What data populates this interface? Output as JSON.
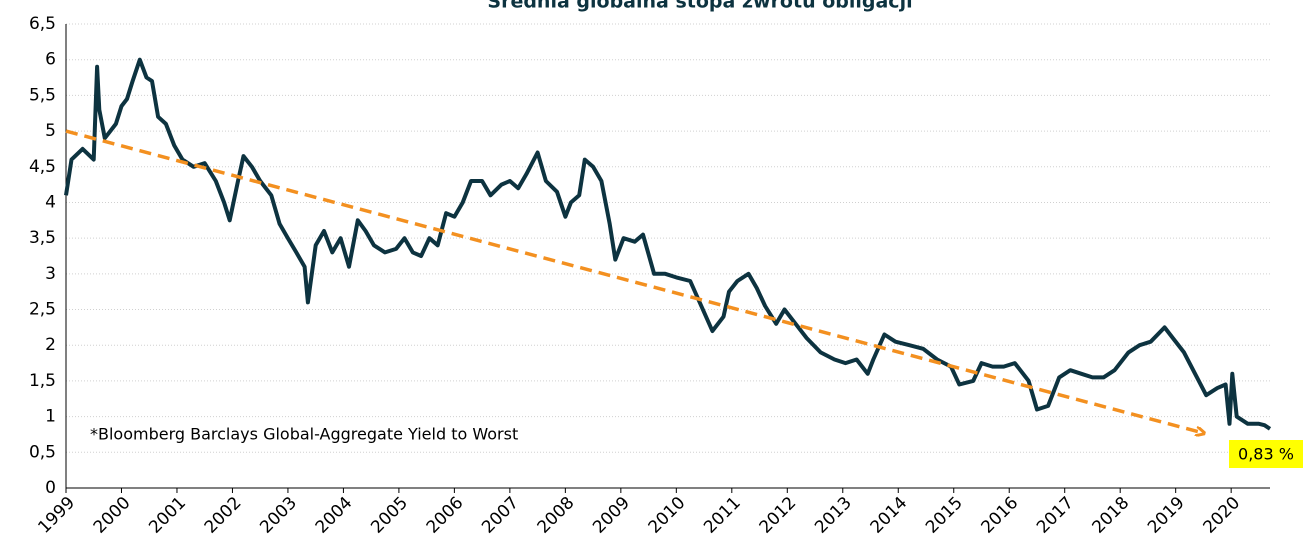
{
  "chart_data": {
    "type": "line",
    "title": "Średnia globalna stopa zwrotu obligacji",
    "note": "*Bloomberg Barclays Global-Aggregate Yield to Worst",
    "end_label": "0,83 %",
    "color": "#0d3340",
    "xlim": [
      1999,
      2020.7
    ],
    "xticks": [
      1999,
      2000,
      2001,
      2002,
      2003,
      2004,
      2005,
      2006,
      2007,
      2008,
      2009,
      2010,
      2011,
      2012,
      2013,
      2014,
      2015,
      2016,
      2017,
      2018,
      2019,
      2020
    ],
    "ylim": [
      0,
      6.5
    ],
    "yticks": [
      0,
      {
        "value": 0.5,
        "label": "0,5"
      },
      1,
      {
        "value": 1.5,
        "label": "1,5"
      },
      2,
      {
        "value": 2.5,
        "label": "2,5"
      },
      3,
      {
        "value": 3.5,
        "label": "3,5"
      },
      4,
      {
        "value": 4.5,
        "label": "4,5"
      },
      5,
      {
        "value": 5.5,
        "label": "5,5"
      },
      6,
      {
        "value": 6.5,
        "label": "6,5"
      }
    ],
    "grid": true,
    "x": [
      1999.0,
      1999.1,
      1999.3,
      1999.5,
      1999.56,
      1999.6,
      1999.7,
      1999.9,
      2000.0,
      2000.1,
      2000.2,
      2000.33,
      2000.45,
      2000.55,
      2000.66,
      2000.8,
      2000.95,
      2001.1,
      2001.3,
      2001.5,
      2001.7,
      2001.85,
      2001.95,
      2002.1,
      2002.2,
      2002.35,
      2002.5,
      2002.7,
      2002.85,
      2003.0,
      2003.15,
      2003.3,
      2003.36,
      2003.5,
      2003.65,
      2003.8,
      2003.95,
      2004.1,
      2004.26,
      2004.4,
      2004.55,
      2004.75,
      2004.95,
      2005.1,
      2005.25,
      2005.4,
      2005.55,
      2005.7,
      2005.85,
      2006.0,
      2006.15,
      2006.3,
      2006.5,
      2006.65,
      2006.85,
      2007.0,
      2007.15,
      2007.3,
      2007.5,
      2007.65,
      2007.85,
      2008.0,
      2008.1,
      2008.25,
      2008.35,
      2008.5,
      2008.65,
      2008.8,
      2008.9,
      2009.05,
      2009.25,
      2009.4,
      2009.6,
      2009.8,
      2010.0,
      2010.25,
      2010.45,
      2010.65,
      2010.85,
      2010.95,
      2011.1,
      2011.3,
      2011.45,
      2011.6,
      2011.8,
      2011.95,
      2012.15,
      2012.35,
      2012.6,
      2012.85,
      2013.05,
      2013.25,
      2013.45,
      2013.55,
      2013.75,
      2013.95,
      2014.2,
      2014.45,
      2014.7,
      2014.95,
      2015.1,
      2015.35,
      2015.5,
      2015.7,
      2015.9,
      2016.1,
      2016.35,
      2016.5,
      2016.7,
      2016.9,
      2017.1,
      2017.3,
      2017.5,
      2017.7,
      2017.9,
      2018.15,
      2018.35,
      2018.55,
      2018.8,
      2018.95,
      2019.15,
      2019.35,
      2019.55,
      2019.75,
      2019.9,
      2019.97,
      2020.02,
      2020.1,
      2020.3,
      2020.5,
      2020.6,
      2020.7
    ],
    "values": [
      4.1,
      4.6,
      4.75,
      4.6,
      5.9,
      5.3,
      4.9,
      5.1,
      5.35,
      5.45,
      5.7,
      6.0,
      5.75,
      5.7,
      5.2,
      5.1,
      4.8,
      4.6,
      4.5,
      4.55,
      4.3,
      4.0,
      3.75,
      4.3,
      4.65,
      4.5,
      4.3,
      4.1,
      3.7,
      3.5,
      3.3,
      3.1,
      2.6,
      3.4,
      3.6,
      3.3,
      3.5,
      3.1,
      3.75,
      3.6,
      3.4,
      3.3,
      3.35,
      3.5,
      3.3,
      3.25,
      3.5,
      3.4,
      3.85,
      3.8,
      4.0,
      4.3,
      4.3,
      4.1,
      4.25,
      4.3,
      4.2,
      4.4,
      4.7,
      4.3,
      4.15,
      3.8,
      4.0,
      4.1,
      4.6,
      4.5,
      4.3,
      3.7,
      3.2,
      3.5,
      3.45,
      3.55,
      3.0,
      3.0,
      2.95,
      2.9,
      2.55,
      2.2,
      2.4,
      2.75,
      2.9,
      3.0,
      2.8,
      2.55,
      2.3,
      2.5,
      2.3,
      2.1,
      1.9,
      1.8,
      1.75,
      1.8,
      1.6,
      1.8,
      2.15,
      2.05,
      2.0,
      1.95,
      1.8,
      1.7,
      1.45,
      1.5,
      1.75,
      1.7,
      1.7,
      1.75,
      1.5,
      1.1,
      1.15,
      1.55,
      1.65,
      1.6,
      1.55,
      1.55,
      1.65,
      1.9,
      2.0,
      2.05,
      2.25,
      2.1,
      1.9,
      1.6,
      1.3,
      1.4,
      1.45,
      0.9,
      1.6,
      1.0,
      0.9,
      0.9,
      0.88,
      0.83
    ],
    "trend_line": {
      "x": [
        1999,
        2019.45
      ],
      "values": [
        5.0,
        0.78
      ],
      "color": "#f39020"
    }
  }
}
